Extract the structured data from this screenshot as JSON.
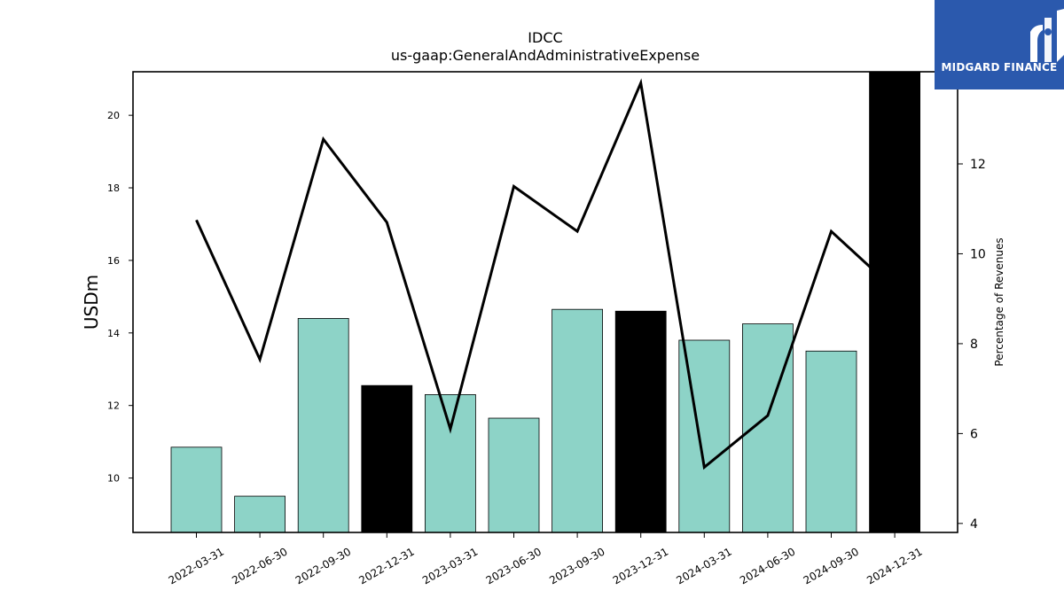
{
  "chart_data": {
    "type": "bar",
    "title": "IDCC",
    "subtitle": "us-gaap:GeneralAndAdministrativeExpense",
    "ylabel": "USDm",
    "y2label": "Percentage of Revenues",
    "categories": [
      "2022-03-31",
      "2022-06-30",
      "2022-09-30",
      "2022-12-31",
      "2023-03-31",
      "2023-06-30",
      "2023-09-30",
      "2023-12-31",
      "2024-03-31",
      "2024-06-30",
      "2024-09-30",
      "2024-12-31"
    ],
    "series": [
      {
        "type": "bar",
        "axis": "left",
        "values": [
          10.85,
          9.5,
          14.4,
          12.55,
          12.3,
          11.65,
          14.65,
          14.6,
          13.8,
          14.25,
          13.5,
          21.5
        ],
        "colors": [
          "#8dd3c7",
          "#8dd3c7",
          "#8dd3c7",
          "#000000",
          "#8dd3c7",
          "#8dd3c7",
          "#8dd3c7",
          "#000000",
          "#8dd3c7",
          "#8dd3c7",
          "#8dd3c7",
          "#000000"
        ]
      },
      {
        "type": "line",
        "axis": "right",
        "values": [
          10.75,
          7.65,
          12.55,
          10.7,
          6.1,
          11.5,
          10.5,
          13.8,
          5.25,
          6.4,
          10.5,
          9.2
        ],
        "color": "#000000"
      }
    ],
    "ylim": [
      8.5,
      21.2
    ],
    "y2lim": [
      3.8,
      14.05
    ],
    "yticks": [
      "10",
      "12",
      "14",
      "16",
      "18",
      "20"
    ],
    "y2ticks": [
      "4",
      "6",
      "8",
      "10",
      "12"
    ],
    "grid": false
  },
  "logo": {
    "text": "MIDGARD FINANCE",
    "color": "#2b59ad"
  }
}
